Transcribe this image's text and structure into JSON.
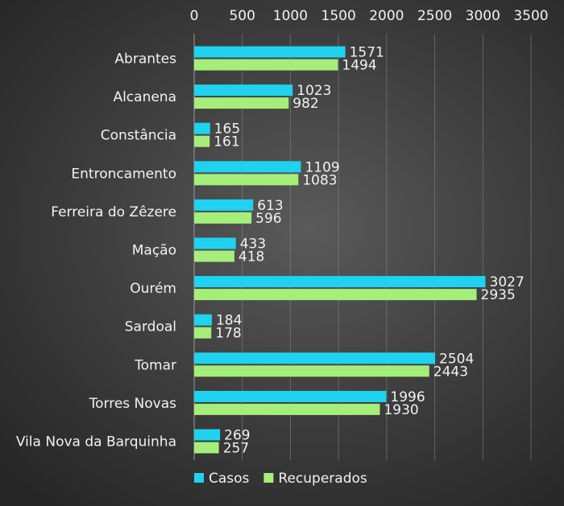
{
  "chart_data": {
    "type": "bar",
    "orientation": "horizontal",
    "categories": [
      "Abrantes",
      "Alcanena",
      "Constância",
      "Entroncamento",
      "Ferreira do Zêzere",
      "Mação",
      "Ourém",
      "Sardoal",
      "Tomar",
      "Torres Novas",
      "Vila Nova da Barquinha"
    ],
    "series": [
      {
        "name": "Casos",
        "color": "#1fd3f0",
        "values": [
          1571,
          1023,
          165,
          1109,
          613,
          433,
          3027,
          184,
          2504,
          1996,
          269
        ]
      },
      {
        "name": "Recuperados",
        "color": "#a6ee7a",
        "values": [
          1494,
          982,
          161,
          1083,
          596,
          418,
          2935,
          178,
          2443,
          1930,
          257
        ]
      }
    ],
    "xlim": [
      0,
      3500
    ],
    "x_ticks": [
      "0",
      "500",
      "1000",
      "1500",
      "2000",
      "2500",
      "3000",
      "3500"
    ],
    "x_axis_position": "top",
    "grid": true,
    "legend_position": "bottom-left",
    "data_labels": true
  }
}
